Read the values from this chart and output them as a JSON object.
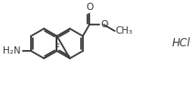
{
  "bg_color": "#ffffff",
  "bond_color": "#3a3a3a",
  "bond_lw": 1.3,
  "font_size": 7.5,
  "font_size_hcl": 8.5,
  "label_color": "#3a3a3a",
  "fig_w": 2.14,
  "fig_h": 0.98,
  "dpi": 100,
  "xlim": [
    0.0,
    10.5
  ],
  "ylim": [
    0.5,
    5.2
  ]
}
